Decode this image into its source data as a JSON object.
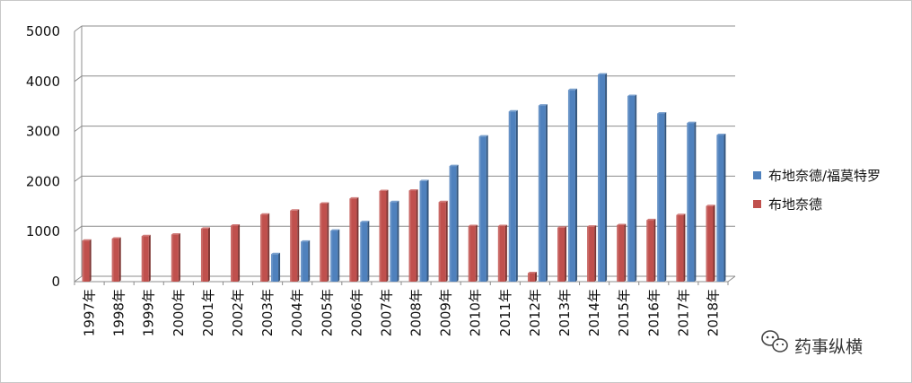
{
  "chart_data": {
    "type": "bar",
    "categories": [
      "1997年",
      "1998年",
      "1999年",
      "2000年",
      "2001年",
      "2002年",
      "2003年",
      "2004年",
      "2005年",
      "2006年",
      "2007年",
      "2008年",
      "2009年",
      "2010年",
      "2011年",
      "2012年",
      "2013年",
      "2014年",
      "2015年",
      "2016年",
      "2017年",
      "2018年"
    ],
    "series": [
      {
        "name": "布地奈德/福莫特罗",
        "color": "#4f81bd",
        "values": [
          0,
          0,
          0,
          0,
          0,
          0,
          550,
          800,
          1020,
          1190,
          1590,
          2010,
          2310,
          2900,
          3400,
          3520,
          3830,
          4140,
          3710,
          3360,
          3170,
          2930
        ]
      },
      {
        "name": "布地奈德",
        "color": "#c0504d",
        "values": [
          820,
          860,
          910,
          940,
          1060,
          1120,
          1340,
          1420,
          1560,
          1660,
          1810,
          1820,
          1590,
          1110,
          1110,
          170,
          1080,
          1100,
          1130,
          1230,
          1330,
          1510
        ]
      }
    ],
    "ylim": [
      0,
      5000
    ],
    "yticks": [
      0,
      1000,
      2000,
      3000,
      4000,
      5000
    ],
    "grid": true,
    "legend": "right"
  },
  "watermark": {
    "icon": "wechat-icon",
    "text": "药事纵横"
  }
}
